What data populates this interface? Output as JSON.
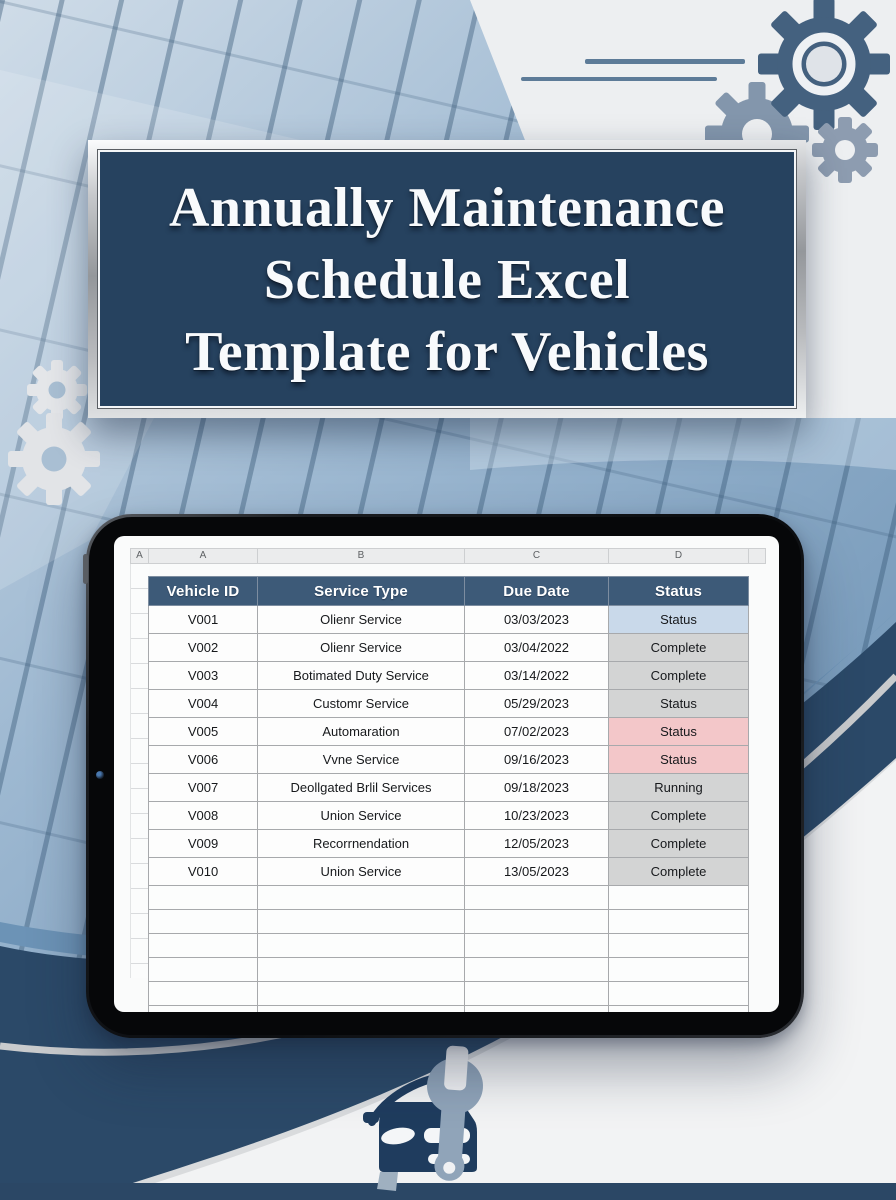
{
  "poster": {
    "title_lines": [
      "Annually Maintenance",
      "Schedule Excel",
      "Template for Vehicles"
    ]
  },
  "spreadsheet": {
    "corner_label": "A",
    "column_letters": [
      "A",
      "B",
      "C",
      "D"
    ],
    "table": {
      "headers": [
        "Vehicle ID",
        "Service Type",
        "Due Date",
        "Status"
      ],
      "rows": [
        {
          "vehicle_id": "V001",
          "service_type": "Olienr Service",
          "due_date": "03/03/2023",
          "status": "Status",
          "status_style": "blue"
        },
        {
          "vehicle_id": "V002",
          "service_type": "Olienr Service",
          "due_date": "03/04/2022",
          "status": "Complete",
          "status_style": "gray"
        },
        {
          "vehicle_id": "V003",
          "service_type": "Botimated Duty Service",
          "due_date": "03/14/2022",
          "status": "Complete",
          "status_style": "gray"
        },
        {
          "vehicle_id": "V004",
          "service_type": "Customr Service",
          "due_date": "05/29/2023",
          "status": "Status",
          "status_style": "gray"
        },
        {
          "vehicle_id": "V005",
          "service_type": "Automaration",
          "due_date": "07/02/2023",
          "status": "Status",
          "status_style": "pink"
        },
        {
          "vehicle_id": "V006",
          "service_type": "Vvne Service",
          "due_date": "09/16/2023",
          "status": "Status",
          "status_style": "pink"
        },
        {
          "vehicle_id": "V007",
          "service_type": "Deollgated Brlil Services",
          "due_date": "09/18/2023",
          "status": "Running",
          "status_style": "gray"
        },
        {
          "vehicle_id": "V008",
          "service_type": "Union Service",
          "due_date": "10/23/2023",
          "status": "Complete",
          "status_style": "gray"
        },
        {
          "vehicle_id": "V009",
          "service_type": "Recorrnendation",
          "due_date": "12/05/2023",
          "status": "Complete",
          "status_style": "gray"
        },
        {
          "vehicle_id": "V010",
          "service_type": "Union Service",
          "due_date": "13/05/2023",
          "status": "Complete",
          "status_style": "gray"
        }
      ],
      "empty_row_count": 6
    }
  },
  "icons": {
    "gear-icon": "⚙",
    "wrench-icon": "🔧",
    "car-icon": "🚗"
  },
  "colors": {
    "page_background": "#edeff1",
    "banner_navy": "#26425f",
    "banner_frame_silver": "#b9bbbe",
    "table_header": "#3d5a78",
    "building_blue": "#9db8d1",
    "swoosh_navy": "#2b4968",
    "swoosh_light_blue": "#6c93b6",
    "bottom_bar_navy": "#2b4765",
    "silver_curve": "#c9cbcd",
    "gear_dark": "#44617f",
    "gear_medium": "#8396ac",
    "gear_light": "#e2e4e7",
    "car_icon": "#1f3c5e",
    "wrench_icon": "#90a4b9",
    "status_fills": {
      "blue": "#c9d9ea",
      "gray": "#d3d4d4",
      "pink": "#f3c7c9"
    }
  }
}
